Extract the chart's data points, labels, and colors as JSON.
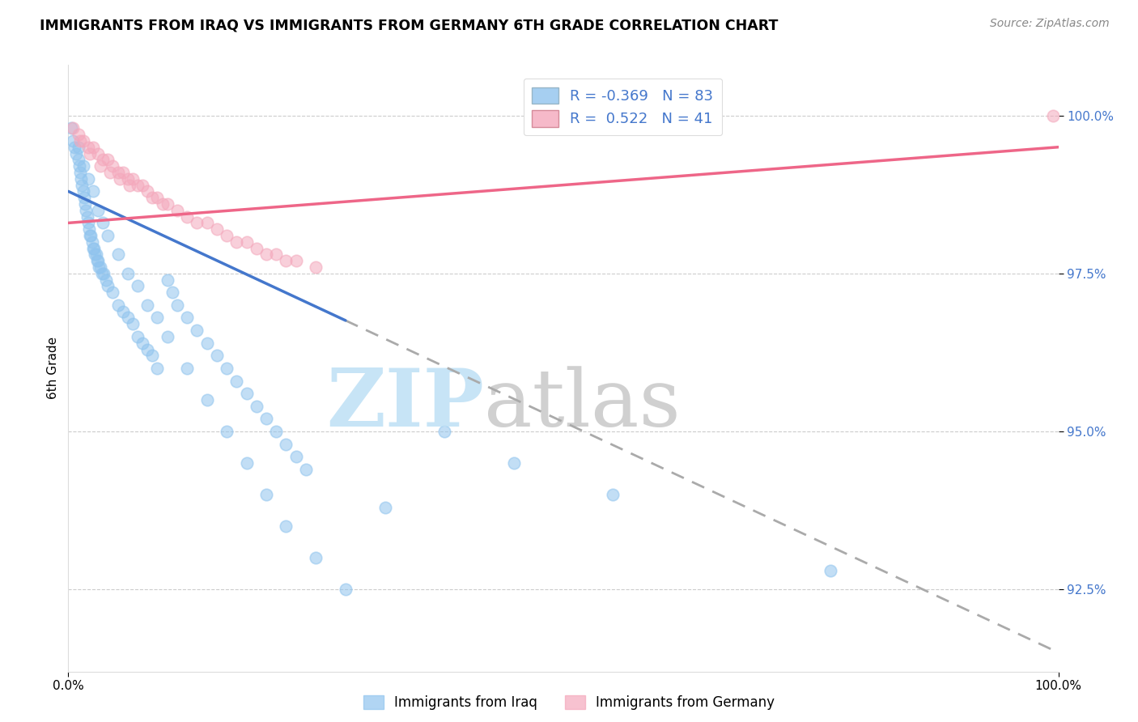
{
  "title": "IMMIGRANTS FROM IRAQ VS IMMIGRANTS FROM GERMANY 6TH GRADE CORRELATION CHART",
  "source": "Source: ZipAtlas.com",
  "ylabel": "6th Grade",
  "legend_iraq": "Immigrants from Iraq",
  "legend_germany": "Immigrants from Germany",
  "y_ticks": [
    92.5,
    95.0,
    97.5,
    100.0
  ],
  "y_tick_labels": [
    "92.5%",
    "95.0%",
    "97.5%",
    "100.0%"
  ],
  "xlim": [
    0.0,
    100.0
  ],
  "ylim": [
    91.2,
    100.8
  ],
  "r_iraq": -0.369,
  "n_iraq": 83,
  "r_germany": 0.522,
  "n_germany": 41,
  "iraq_color": "#90C4EE",
  "germany_color": "#F4A8BC",
  "iraq_line_color": "#4477CC",
  "germany_line_color": "#EE6688",
  "iraq_line_solid_end": 28.0,
  "iraq_line_start_y": 98.8,
  "iraq_line_end_y": 91.5,
  "germany_line_start_y": 98.3,
  "germany_line_end_y": 99.5,
  "watermark_zip_color": "#BEE0F5",
  "watermark_atlas_color": "#C8C8C8",
  "tick_color": "#4477CC",
  "grid_color": "#CCCCCC",
  "iraq_x": [
    0.3,
    0.5,
    0.6,
    0.8,
    1.0,
    1.1,
    1.2,
    1.3,
    1.4,
    1.5,
    1.6,
    1.7,
    1.8,
    1.9,
    2.0,
    2.1,
    2.2,
    2.3,
    2.4,
    2.5,
    2.6,
    2.7,
    2.8,
    2.9,
    3.0,
    3.1,
    3.2,
    3.4,
    3.6,
    3.8,
    4.0,
    4.5,
    5.0,
    5.5,
    6.0,
    6.5,
    7.0,
    7.5,
    8.0,
    8.5,
    9.0,
    10.0,
    10.5,
    11.0,
    12.0,
    13.0,
    14.0,
    15.0,
    16.0,
    17.0,
    18.0,
    19.0,
    20.0,
    21.0,
    22.0,
    23.0,
    24.0,
    1.0,
    1.5,
    2.0,
    2.5,
    3.0,
    3.5,
    4.0,
    5.0,
    6.0,
    7.0,
    8.0,
    9.0,
    10.0,
    12.0,
    14.0,
    16.0,
    18.0,
    20.0,
    22.0,
    25.0,
    28.0,
    32.0,
    38.0,
    45.0,
    55.0,
    77.0
  ],
  "iraq_y": [
    99.8,
    99.6,
    99.5,
    99.4,
    99.3,
    99.2,
    99.1,
    99.0,
    98.9,
    98.8,
    98.7,
    98.6,
    98.5,
    98.4,
    98.3,
    98.2,
    98.1,
    98.1,
    98.0,
    97.9,
    97.9,
    97.8,
    97.8,
    97.7,
    97.7,
    97.6,
    97.6,
    97.5,
    97.5,
    97.4,
    97.3,
    97.2,
    97.0,
    96.9,
    96.8,
    96.7,
    96.5,
    96.4,
    96.3,
    96.2,
    96.0,
    97.4,
    97.2,
    97.0,
    96.8,
    96.6,
    96.4,
    96.2,
    96.0,
    95.8,
    95.6,
    95.4,
    95.2,
    95.0,
    94.8,
    94.6,
    94.4,
    99.5,
    99.2,
    99.0,
    98.8,
    98.5,
    98.3,
    98.1,
    97.8,
    97.5,
    97.3,
    97.0,
    96.8,
    96.5,
    96.0,
    95.5,
    95.0,
    94.5,
    94.0,
    93.5,
    93.0,
    92.5,
    93.8,
    95.0,
    94.5,
    94.0,
    92.8
  ],
  "germany_x": [
    0.5,
    1.0,
    1.5,
    2.0,
    2.5,
    3.0,
    3.5,
    4.0,
    4.5,
    5.0,
    5.5,
    6.0,
    6.5,
    7.0,
    7.5,
    8.0,
    8.5,
    9.0,
    9.5,
    10.0,
    11.0,
    12.0,
    13.0,
    14.0,
    15.0,
    16.0,
    17.0,
    18.0,
    19.0,
    20.0,
    21.0,
    22.0,
    23.0,
    25.0,
    1.2,
    2.2,
    3.2,
    4.2,
    5.2,
    6.2,
    99.5
  ],
  "germany_y": [
    99.8,
    99.7,
    99.6,
    99.5,
    99.5,
    99.4,
    99.3,
    99.3,
    99.2,
    99.1,
    99.1,
    99.0,
    99.0,
    98.9,
    98.9,
    98.8,
    98.7,
    98.7,
    98.6,
    98.6,
    98.5,
    98.4,
    98.3,
    98.3,
    98.2,
    98.1,
    98.0,
    98.0,
    97.9,
    97.8,
    97.8,
    97.7,
    97.7,
    97.6,
    99.6,
    99.4,
    99.2,
    99.1,
    99.0,
    98.9,
    100.0
  ]
}
